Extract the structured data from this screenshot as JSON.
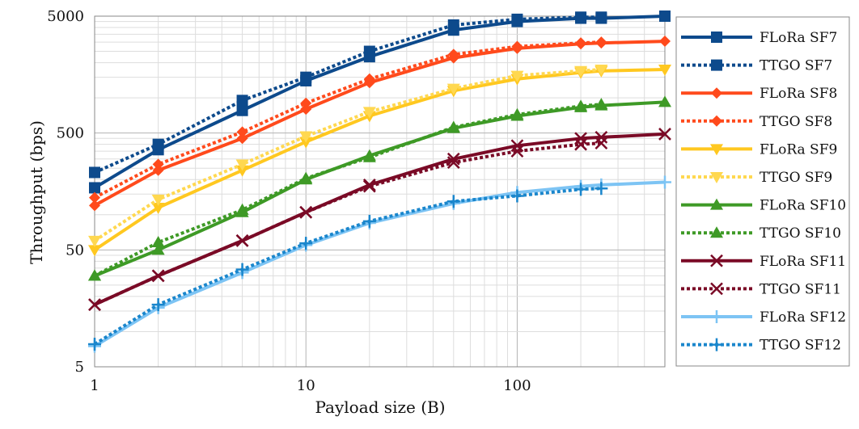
{
  "chart_data": {
    "type": "line",
    "xlabel": "Payload size (B)",
    "ylabel": "Throughput (bps)",
    "xscale": "log",
    "yscale": "log",
    "xlim": [
      1,
      500
    ],
    "ylim": [
      5,
      5000
    ],
    "xticks": [
      1,
      10,
      100
    ],
    "xtick_labels": [
      "1",
      "10",
      "100"
    ],
    "yticks": [
      5,
      50,
      500,
      5000
    ],
    "ytick_labels": [
      "5",
      "50",
      "500",
      "5000"
    ],
    "grid": true,
    "legend_position": "right",
    "series": [
      {
        "name": "FLoRa SF7",
        "color": "#0d4a8c",
        "linestyle": "solid",
        "marker": "square",
        "x": [
          1,
          2,
          5,
          10,
          20,
          50,
          100,
          200,
          250,
          500
        ],
        "y": [
          170,
          360,
          780,
          1400,
          2250,
          3800,
          4500,
          4800,
          4800,
          5000
        ]
      },
      {
        "name": "TTGO SF7",
        "color": "#0d4a8c",
        "linestyle": "dotted",
        "marker": "square",
        "x": [
          1,
          2,
          5,
          10,
          20,
          50,
          100,
          200,
          250
        ],
        "y": [
          230,
          400,
          950,
          1500,
          2500,
          4200,
          4700,
          4900,
          4900
        ]
      },
      {
        "name": "FLoRa SF8",
        "color": "#ff4a1c",
        "linestyle": "solid",
        "marker": "diamond",
        "x": [
          1,
          2,
          5,
          10,
          20,
          50,
          100,
          200,
          250,
          500
        ],
        "y": [
          120,
          240,
          450,
          800,
          1350,
          2200,
          2650,
          2900,
          2950,
          3050
        ]
      },
      {
        "name": "TTGO SF8",
        "color": "#ff4a1c",
        "linestyle": "dotted",
        "marker": "diamond",
        "x": [
          1,
          2,
          5,
          10,
          20,
          50,
          100,
          200,
          250
        ],
        "y": [
          140,
          270,
          510,
          900,
          1450,
          2350,
          2750,
          2950,
          3000
        ]
      },
      {
        "name": "FLoRa SF9",
        "color": "#ffc820",
        "linestyle": "solid",
        "marker": "triangle-down",
        "x": [
          1,
          2,
          5,
          10,
          20,
          50,
          100,
          200,
          250,
          500
        ],
        "y": [
          50,
          115,
          240,
          420,
          700,
          1150,
          1450,
          1650,
          1700,
          1750
        ]
      },
      {
        "name": "TTGO SF9",
        "color": "#ffd850",
        "linestyle": "dotted",
        "marker": "triangle-down",
        "x": [
          1,
          2,
          5,
          10,
          20,
          50,
          100,
          200,
          250
        ],
        "y": [
          60,
          135,
          270,
          470,
          760,
          1200,
          1550,
          1700,
          1750
        ]
      },
      {
        "name": "FLoRa SF10",
        "color": "#3e9a26",
        "linestyle": "solid",
        "marker": "triangle-up",
        "x": [
          1,
          2,
          5,
          10,
          20,
          50,
          100,
          200,
          250,
          500
        ],
        "y": [
          30,
          50,
          105,
          200,
          320,
          550,
          700,
          830,
          860,
          920
        ]
      },
      {
        "name": "TTGO SF10",
        "color": "#3e9a26",
        "linestyle": "dotted",
        "marker": "triangle-up",
        "x": [
          1,
          2,
          5,
          10,
          20,
          50,
          100,
          200,
          250
        ],
        "y": [
          30,
          58,
          110,
          205,
          310,
          560,
          720,
          850,
          880
        ]
      },
      {
        "name": "FLoRa SF11",
        "color": "#7a0a26",
        "linestyle": "solid",
        "marker": "x",
        "x": [
          1,
          2,
          5,
          10,
          20,
          50,
          100,
          200,
          250,
          500
        ],
        "y": [
          17,
          30,
          60,
          105,
          180,
          300,
          390,
          450,
          460,
          490
        ]
      },
      {
        "name": "TTGO SF11",
        "color": "#7a0a26",
        "linestyle": "dotted",
        "marker": "x",
        "x": [
          1,
          2,
          5,
          10,
          20,
          50,
          100,
          200,
          250
        ],
        "y": [
          17,
          30,
          60,
          105,
          175,
          280,
          350,
          400,
          410
        ]
      },
      {
        "name": "FLoRa SF12",
        "color": "#7dc4f4",
        "linestyle": "solid",
        "marker": "plus",
        "x": [
          1,
          2,
          5,
          10,
          20,
          50,
          100,
          200,
          250,
          500
        ],
        "y": [
          7.5,
          16,
          32,
          55,
          85,
          125,
          155,
          175,
          180,
          190
        ]
      },
      {
        "name": "TTGO SF12",
        "color": "#1a86cc",
        "linestyle": "dotted",
        "marker": "plus",
        "x": [
          1,
          2,
          5,
          10,
          20,
          50,
          100,
          200,
          250
        ],
        "y": [
          7.8,
          17,
          34,
          57,
          88,
          130,
          145,
          165,
          168
        ]
      }
    ]
  }
}
